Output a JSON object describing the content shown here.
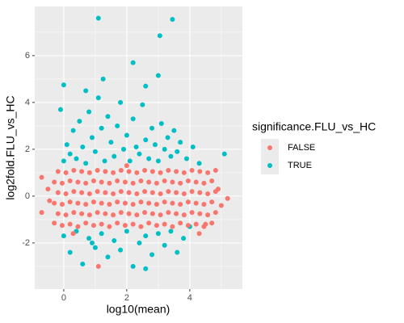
{
  "chart_data": {
    "type": "scatter",
    "x_label": "log10(mean)",
    "y_label": "log2fold.FLU_vs_HC",
    "legend_title": "significance.FLU_vs_HC",
    "xlim": [
      -0.92,
      5.67
    ],
    "ylim": [
      -3.97,
      8.1
    ],
    "xticks": [
      0,
      2,
      4
    ],
    "yticks": [
      -2,
      0,
      2,
      4,
      6
    ],
    "grid": true,
    "legend": "right",
    "series": [
      {
        "name": "TRUE",
        "color": "#00BFC4",
        "x": [
          0,
          0.1,
          0.2,
          0.3,
          0.4,
          0.5,
          0.6,
          0.7,
          0.8,
          0.9,
          1.0,
          1.1,
          1.2,
          1.3,
          1.4,
          1.5,
          1.6,
          1.7,
          1.8,
          1.9,
          2.0,
          2.1,
          2.2,
          2.3,
          2.4,
          2.5,
          2.6,
          2.7,
          2.8,
          2.9,
          3.0,
          3.1,
          3.2,
          3.3,
          3.4,
          3.5,
          3.6,
          3.7,
          3.9,
          4.1,
          4.3,
          5.1,
          -0.1,
          1.25,
          0.7,
          2.6,
          1.1,
          3.45,
          3.05,
          2.2,
          3.0,
          0,
          0,
          0.2,
          0.4,
          0.6,
          0.8,
          1.0,
          1.2,
          1.4,
          1.6,
          1.8,
          2.0,
          2.2,
          2.4,
          2.6,
          2.8,
          3.0,
          3.2,
          3.4,
          3.6,
          3.8,
          4.0,
          2.6,
          0.9
        ],
        "values": [
          1.5,
          2.2,
          1.8,
          2.8,
          1.6,
          3.2,
          2.1,
          1.4,
          3.6,
          2.5,
          1.9,
          4.2,
          2.9,
          1.5,
          3.4,
          2.3,
          1.7,
          3.0,
          4.0,
          2.0,
          2.6,
          1.5,
          3.3,
          2.1,
          1.8,
          3.9,
          2.4,
          1.6,
          2.9,
          2.2,
          1.5,
          3.1,
          2.0,
          2.5,
          1.7,
          2.8,
          1.9,
          2.3,
          1.6,
          2.1,
          1.4,
          1.8,
          3.7,
          5.0,
          4.5,
          4.7,
          7.6,
          7.55,
          6.85,
          5.7,
          5.15,
          4.75,
          -1.7,
          -2.4,
          -1.5,
          -2.9,
          -1.8,
          -2.2,
          -1.6,
          -2.6,
          -1.9,
          -2.3,
          -1.5,
          -3.0,
          -2.0,
          -1.7,
          -2.5,
          -1.6,
          -2.1,
          -1.5,
          -2.4,
          -1.8,
          -1.3,
          -3.1,
          -2.0
        ]
      },
      {
        "name": "FALSE",
        "color": "#F8766D",
        "x": [
          -0.3,
          -0.05,
          0.2,
          0.45,
          0.7,
          0.95,
          1.2,
          1.45,
          1.7,
          1.95,
          2.2,
          2.45,
          2.7,
          2.95,
          3.2,
          3.45,
          3.7,
          3.95,
          4.2,
          4.45,
          4.7,
          -0.18,
          0.07,
          0.32,
          0.57,
          0.82,
          1.07,
          1.32,
          1.57,
          1.82,
          2.07,
          2.32,
          2.57,
          2.82,
          3.07,
          3.32,
          3.57,
          3.82,
          4.07,
          4.32,
          4.57,
          4.82,
          -0.3,
          -0.05,
          0.2,
          0.45,
          0.7,
          0.95,
          1.2,
          1.45,
          1.7,
          1.95,
          2.2,
          2.45,
          2.7,
          2.95,
          3.2,
          3.45,
          3.7,
          3.95,
          4.2,
          4.45,
          4.7,
          -0.18,
          0.07,
          0.32,
          0.57,
          0.82,
          1.07,
          1.32,
          1.57,
          1.82,
          2.07,
          2.32,
          2.57,
          2.82,
          3.07,
          3.32,
          3.57,
          3.82,
          4.07,
          4.32,
          4.57,
          4.82,
          -0.3,
          -0.05,
          0.2,
          0.45,
          0.7,
          0.95,
          1.2,
          1.45,
          1.7,
          1.95,
          2.2,
          2.45,
          2.7,
          2.95,
          3.2,
          3.45,
          3.7,
          3.95,
          4.2,
          4.45,
          4.7,
          -0.18,
          0.07,
          0.32,
          0.57,
          0.82,
          1.07,
          1.32,
          1.57,
          1.82,
          2.07,
          2.32,
          2.57,
          2.82,
          3.07,
          3.32,
          3.57,
          3.82,
          4.07,
          4.32,
          4.57,
          4.82,
          -0.7,
          -0.7,
          1.1,
          5.2,
          4.9,
          4.5,
          5.0,
          -0.45,
          -0.5,
          4.3,
          0.3,
          2.0
        ],
        "values": [
          -1.15,
          -1.25,
          -1.2,
          -1.3,
          -1.15,
          -1.25,
          -1.2,
          -1.3,
          -1.15,
          -1.25,
          -1.2,
          -1.3,
          -1.15,
          -1.25,
          -1.2,
          -1.3,
          -1.15,
          -1.25,
          -1.2,
          -1.3,
          -1.15,
          -0.75,
          -0.8,
          -0.7,
          -0.75,
          -0.8,
          -0.7,
          -0.75,
          -0.8,
          -0.7,
          -0.75,
          -0.8,
          -0.7,
          -0.75,
          -0.8,
          -0.7,
          -0.75,
          -0.8,
          -0.7,
          -0.75,
          -0.8,
          -0.7,
          -0.3,
          -0.35,
          -0.25,
          -0.3,
          -0.35,
          -0.25,
          -0.3,
          -0.35,
          -0.25,
          -0.3,
          -0.35,
          -0.25,
          -0.3,
          -0.35,
          -0.25,
          -0.3,
          -0.35,
          -0.25,
          -0.3,
          -0.35,
          -0.25,
          0.15,
          0.1,
          0.2,
          0.15,
          0.1,
          0.2,
          0.15,
          0.1,
          0.2,
          0.15,
          0.1,
          0.2,
          0.15,
          0.1,
          0.2,
          0.15,
          0.1,
          0.2,
          0.15,
          0.1,
          0.2,
          0.6,
          0.55,
          0.65,
          0.6,
          0.55,
          0.65,
          0.6,
          0.55,
          0.65,
          0.6,
          0.55,
          0.65,
          0.6,
          0.55,
          0.65,
          0.6,
          0.55,
          0.65,
          0.6,
          0.55,
          0.65,
          1.05,
          1.0,
          1.1,
          1.05,
          1.0,
          1.1,
          1.05,
          1.0,
          1.1,
          1.05,
          1.0,
          1.1,
          1.05,
          1.0,
          1.1,
          1.05,
          1.0,
          1.1,
          1.05,
          1.0,
          1.1,
          0.8,
          -0.7,
          -3.0,
          -0.1,
          0.3,
          -1.2,
          -0.4,
          -0.2,
          0.3,
          -1.6,
          -1.6,
          1.3
        ]
      }
    ]
  }
}
